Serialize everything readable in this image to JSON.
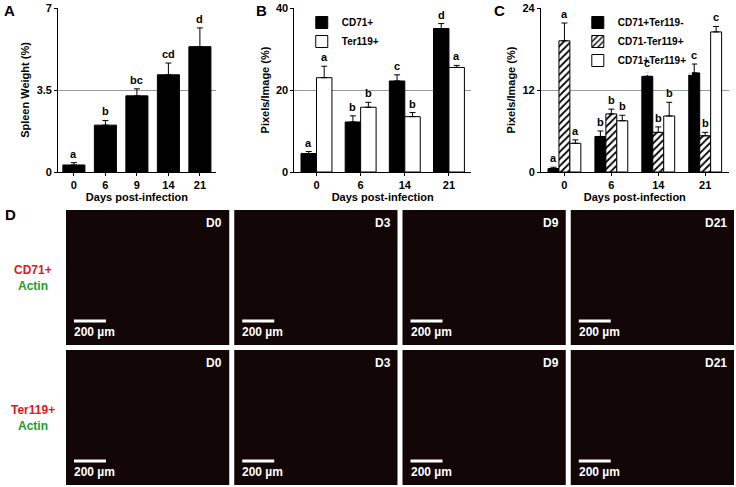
{
  "chart_data": [
    {
      "panel": "A",
      "type": "bar",
      "categories": [
        "0",
        "6",
        "9",
        "14",
        "21"
      ],
      "values": [
        0.3,
        2.0,
        3.25,
        4.15,
        5.35
      ],
      "errors": [
        0.1,
        0.2,
        0.3,
        0.5,
        0.8
      ],
      "annotations": [
        "a",
        "b",
        "bc",
        "cd",
        "d"
      ],
      "color": "#000000",
      "x_label": "Days post-infection",
      "y_label": "Spleen Weight (%)",
      "ylim": [
        0,
        7
      ],
      "yticks": [
        0,
        3.5,
        7
      ],
      "grid": true
    },
    {
      "panel": "B",
      "type": "bar",
      "categories": [
        "0",
        "6",
        "14",
        "21"
      ],
      "x_label": "Days post-infection",
      "y_label": "Pixels/Image (%)",
      "ylim": [
        0,
        40
      ],
      "yticks": [
        0,
        20,
        40
      ],
      "grid": true,
      "legend": "top left",
      "series": [
        {
          "name": "CD71+",
          "color": "#000000",
          "values": [
            4.5,
            12.2,
            22.2,
            35
          ],
          "errors": [
            0.5,
            1.5,
            1.5,
            1.2
          ],
          "annotations": [
            "a",
            "b",
            "c",
            "d"
          ]
        },
        {
          "name": "Ter119+",
          "color": "#ffffff",
          "values": [
            23,
            15.8,
            13.5,
            25.5
          ],
          "errors": [
            2.8,
            1.2,
            1.0,
            0.5
          ],
          "annotations": [
            "a",
            "b",
            "b",
            "a"
          ]
        }
      ]
    },
    {
      "panel": "C",
      "type": "bar",
      "categories": [
        "0",
        "6",
        "14",
        "21"
      ],
      "x_label": "Days post-infection",
      "y_label": "Pixels/Image (%)",
      "ylim": [
        0,
        24
      ],
      "yticks": [
        0,
        12,
        24
      ],
      "grid": true,
      "legend": "top",
      "series": [
        {
          "name": "CD71+Ter119-",
          "color": "#000000",
          "values": [
            0.5,
            5.2,
            14,
            14.5
          ],
          "errors": [
            0.2,
            0.8,
            0.6,
            1.3
          ],
          "annotations": [
            "a",
            "b",
            "c",
            "c"
          ]
        },
        {
          "name": "CD71-Ter119+",
          "color": "#ffffff",
          "marker": "hatch",
          "values": [
            19.2,
            8.5,
            5.8,
            5.3
          ],
          "errors": [
            2.6,
            0.7,
            0.8,
            0.5
          ],
          "annotations": [
            "a",
            "b",
            "b",
            "b"
          ]
        },
        {
          "name": "CD71+Ter119+",
          "color": "#ffffff",
          "values": [
            4.2,
            7.5,
            8.2,
            20.5
          ],
          "errors": [
            0.5,
            0.8,
            2.0,
            0.8
          ],
          "annotations": [
            "a",
            "b",
            "b",
            "c"
          ]
        }
      ]
    }
  ],
  "image_panel": {
    "panel": "D",
    "columns": [
      "D0",
      "D3",
      "D9",
      "D21"
    ],
    "rows": [
      {
        "marker": "CD71+",
        "stain": "Actin"
      },
      {
        "marker": "Ter119+",
        "stain": "Actin"
      }
    ],
    "scale_bar": "200 µm"
  }
}
